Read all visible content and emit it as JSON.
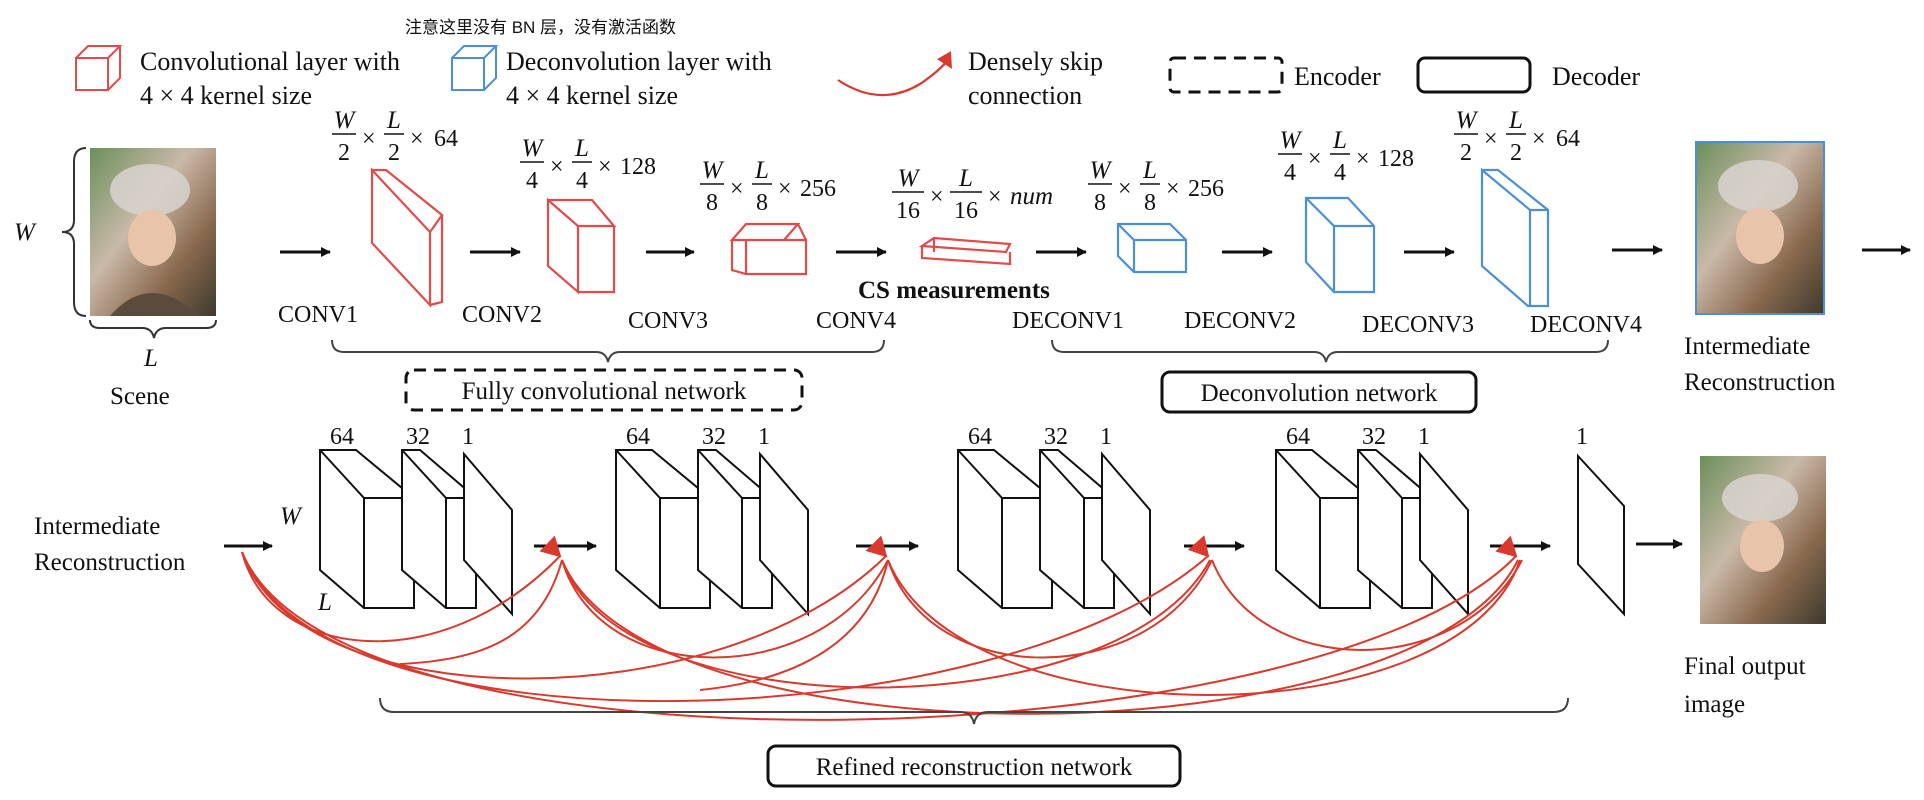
{
  "annotation_note": "注意这里没有 BN 层，没有激活函数",
  "legend": {
    "conv_line1": "Convolutional layer with",
    "conv_line2": "4 × 4 kernel size",
    "deconv_line1": "Deconvolution layer with",
    "deconv_line2": "4 × 4 kernel size",
    "skip_line1": "Densely skip",
    "skip_line2": "connection",
    "encoder": "Encoder",
    "decoder": "Decoder"
  },
  "colors": {
    "conv": "#e34a4a",
    "deconv": "#4d8fd6",
    "skip": "#d93a2e",
    "ink": "#111111"
  },
  "scene": {
    "w_label": "W",
    "l_label": "L",
    "caption": "Scene"
  },
  "layers": {
    "conv1": "CONV1",
    "conv2": "CONV2",
    "conv3": "CONV3",
    "conv4": "CONV4",
    "deconv1": "DECONV1",
    "deconv2": "DECONV2",
    "deconv3": "DECONV3",
    "deconv4": "DECONV4"
  },
  "dims": {
    "conv1": {
      "num": "W",
      "den": "2",
      "num2": "L",
      "den2": "2",
      "ch": "64"
    },
    "conv2": {
      "num": "W",
      "den": "4",
      "num2": "L",
      "den2": "4",
      "ch": "128"
    },
    "conv3": {
      "num": "W",
      "den": "8",
      "num2": "L",
      "den2": "8",
      "ch": "256"
    },
    "cs": {
      "num": "W",
      "den": "16",
      "num2": "L",
      "den2": "16",
      "ch": "num"
    },
    "deconv1": {
      "num": "W",
      "den": "8",
      "num2": "L",
      "den2": "8",
      "ch": "256"
    },
    "deconv2": {
      "num": "W",
      "den": "4",
      "num2": "L",
      "den2": "4",
      "ch": "128"
    },
    "deconv3": {
      "num": "W",
      "den": "2",
      "num2": "L",
      "den2": "2",
      "ch": "64"
    }
  },
  "cs_measurements": "CS measurements",
  "brackets": {
    "fcn": "Fully convolutional network",
    "deconv_net": "Deconvolution network",
    "refined": "Refined reconstruction network"
  },
  "intermediate": {
    "top_line1": "Intermediate",
    "top_line2": "Reconstruction",
    "left_line1": "Intermediate",
    "left_line2": "Reconstruction"
  },
  "refine": {
    "w_label": "W",
    "l_label": "L",
    "ch_a": "64",
    "ch_b": "32",
    "ch_c": "1",
    "final_ch": "1"
  },
  "final_output": {
    "line1": "Final output",
    "line2": "image"
  }
}
